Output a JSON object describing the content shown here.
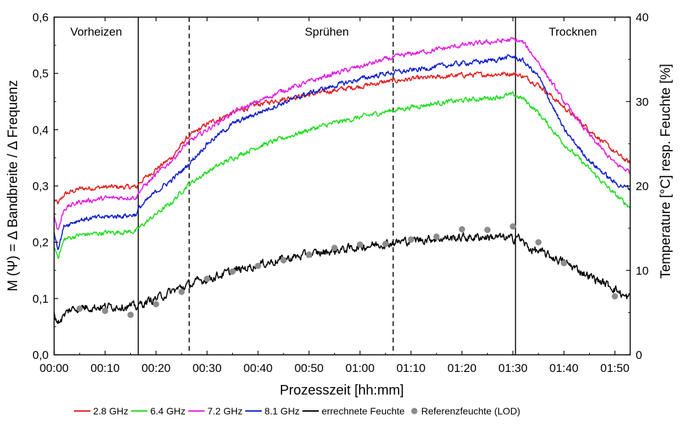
{
  "chart_data": {
    "type": "line",
    "xlabel": "Prozesszeit [hh:mm]",
    "ylabel_left": "M (Ψ) = Δ Bandbreite / Δ Frequenz",
    "ylabel_right": "Temperature [°C] resp. Feuchte [%]",
    "x_unit": "minutes",
    "xlim": [
      0,
      113
    ],
    "ylim_left": [
      0,
      0.6
    ],
    "ylim_right": [
      0,
      40
    ],
    "x_ticks": [
      0,
      10,
      20,
      30,
      40,
      50,
      60,
      70,
      80,
      90,
      100,
      110
    ],
    "x_tick_labels": [
      "00:00",
      "00:10",
      "00:20",
      "00:30",
      "00:40",
      "00:50",
      "01:00",
      "01:10",
      "01:20",
      "01:30",
      "01:40",
      "01:50"
    ],
    "y_left_ticks": [
      0,
      0.1,
      0.2,
      0.3,
      0.4,
      0.5,
      0.6
    ],
    "y_left_tick_labels": [
      "0,0",
      "0,1",
      "0,2",
      "0,3",
      "0,4",
      "0,5",
      "0,6"
    ],
    "y_right_ticks": [
      0,
      10,
      20,
      30,
      40
    ],
    "y_right_tick_labels": [
      "0",
      "10",
      "20",
      "30",
      "40"
    ],
    "phases": [
      {
        "label": "Vorheizen",
        "start": 0,
        "end": 16.5
      },
      {
        "label": "Sprühen",
        "start": 16.5,
        "end": 90.5
      },
      {
        "label": "Trocknen",
        "start": 90.5,
        "end": 113
      }
    ],
    "phase_boundaries": [
      {
        "x": 16.5,
        "style": "solid"
      },
      {
        "x": 26.5,
        "style": "dashed"
      },
      {
        "x": 66.5,
        "style": "dashed"
      },
      {
        "x": 90.5,
        "style": "solid"
      }
    ],
    "series": [
      {
        "name": "2.8 GHz",
        "color": "#e02020",
        "axis": "left",
        "x": [
          0,
          0.8,
          2,
          5,
          10,
          15,
          16.2,
          16.6,
          20,
          23,
          26,
          30,
          35,
          40,
          45,
          50,
          55,
          60,
          65,
          70,
          75,
          80,
          85,
          90,
          92,
          95,
          100,
          105,
          110,
          113
        ],
        "y": [
          0.275,
          0.268,
          0.285,
          0.295,
          0.298,
          0.298,
          0.298,
          0.305,
          0.33,
          0.35,
          0.385,
          0.41,
          0.43,
          0.445,
          0.455,
          0.462,
          0.47,
          0.477,
          0.485,
          0.49,
          0.493,
          0.497,
          0.498,
          0.5,
          0.495,
          0.48,
          0.44,
          0.4,
          0.36,
          0.34
        ]
      },
      {
        "name": "6.4 GHz",
        "color": "#22dd22",
        "axis": "left",
        "x": [
          0,
          0.8,
          2,
          5,
          10,
          15,
          16.2,
          16.6,
          20,
          23,
          26,
          30,
          35,
          40,
          45,
          50,
          55,
          60,
          65,
          70,
          75,
          80,
          85,
          90,
          92,
          95,
          100,
          105,
          110,
          113
        ],
        "y": [
          0.19,
          0.175,
          0.205,
          0.213,
          0.217,
          0.219,
          0.22,
          0.225,
          0.25,
          0.27,
          0.3,
          0.325,
          0.35,
          0.37,
          0.385,
          0.4,
          0.412,
          0.422,
          0.432,
          0.44,
          0.447,
          0.452,
          0.456,
          0.462,
          0.455,
          0.43,
          0.375,
          0.33,
          0.285,
          0.262
        ]
      },
      {
        "name": "7.2 GHz",
        "color": "#e020e0",
        "axis": "left",
        "x": [
          0,
          0.8,
          2,
          5,
          10,
          15,
          16.2,
          16.6,
          20,
          23,
          26,
          30,
          35,
          40,
          45,
          50,
          55,
          60,
          65,
          70,
          75,
          80,
          85,
          90,
          92,
          95,
          100,
          105,
          110,
          113
        ],
        "y": [
          0.245,
          0.222,
          0.26,
          0.272,
          0.278,
          0.28,
          0.28,
          0.29,
          0.32,
          0.345,
          0.375,
          0.4,
          0.43,
          0.45,
          0.47,
          0.485,
          0.5,
          0.512,
          0.525,
          0.535,
          0.542,
          0.55,
          0.555,
          0.56,
          0.555,
          0.52,
          0.45,
          0.39,
          0.34,
          0.325
        ]
      },
      {
        "name": "8.1 GHz",
        "color": "#1020c8",
        "axis": "left",
        "x": [
          0,
          0.8,
          2,
          5,
          10,
          15,
          16.2,
          16.6,
          20,
          23,
          26,
          30,
          35,
          40,
          45,
          50,
          55,
          60,
          65,
          70,
          75,
          80,
          85,
          90,
          92,
          95,
          100,
          105,
          110,
          113
        ],
        "y": [
          0.215,
          0.19,
          0.23,
          0.24,
          0.245,
          0.248,
          0.25,
          0.26,
          0.29,
          0.31,
          0.335,
          0.375,
          0.41,
          0.43,
          0.448,
          0.465,
          0.478,
          0.49,
          0.5,
          0.505,
          0.512,
          0.518,
          0.522,
          0.53,
          0.522,
          0.495,
          0.4,
          0.345,
          0.305,
          0.295
        ]
      },
      {
        "name": "errechnete Feuchte",
        "color": "#000000",
        "axis": "left",
        "x": [
          0,
          0.8,
          3,
          6,
          10,
          13,
          16.2,
          17,
          20,
          25,
          30,
          35,
          40,
          45,
          50,
          55,
          60,
          65,
          70,
          75,
          80,
          85,
          88,
          90.3,
          90.5,
          91,
          93,
          96,
          100,
          105,
          110,
          112,
          113
        ],
        "y": [
          0.07,
          0.058,
          0.08,
          0.085,
          0.085,
          0.087,
          0.085,
          0.09,
          0.1,
          0.12,
          0.135,
          0.148,
          0.16,
          0.17,
          0.178,
          0.185,
          0.192,
          0.198,
          0.203,
          0.207,
          0.208,
          0.21,
          0.208,
          0.205,
          0.215,
          0.21,
          0.19,
          0.18,
          0.165,
          0.14,
          0.118,
          0.102,
          0.102
        ]
      }
    ],
    "reference_points": {
      "name": "Referenzfeuchte (LOD)",
      "color": "#8c8c8c",
      "axis": "left",
      "x": [
        5,
        10,
        15,
        20,
        25,
        30,
        35,
        40,
        45,
        50,
        55,
        60,
        65,
        70,
        75,
        80,
        85,
        90,
        95,
        100,
        110
      ],
      "y": [
        0.082,
        0.078,
        0.071,
        0.09,
        0.112,
        0.135,
        0.148,
        0.158,
        0.168,
        0.178,
        0.19,
        0.196,
        0.197,
        0.205,
        0.21,
        0.223,
        0.222,
        0.228,
        0.2,
        0.163,
        0.104
      ]
    },
    "legend": {
      "position": "bottom",
      "entries": [
        "2.8 GHz",
        "6.4 GHz",
        "7.2 GHz",
        "8.1 GHz",
        "errechnete Feuchte",
        "Referenzfeuchte (LOD)"
      ]
    }
  }
}
